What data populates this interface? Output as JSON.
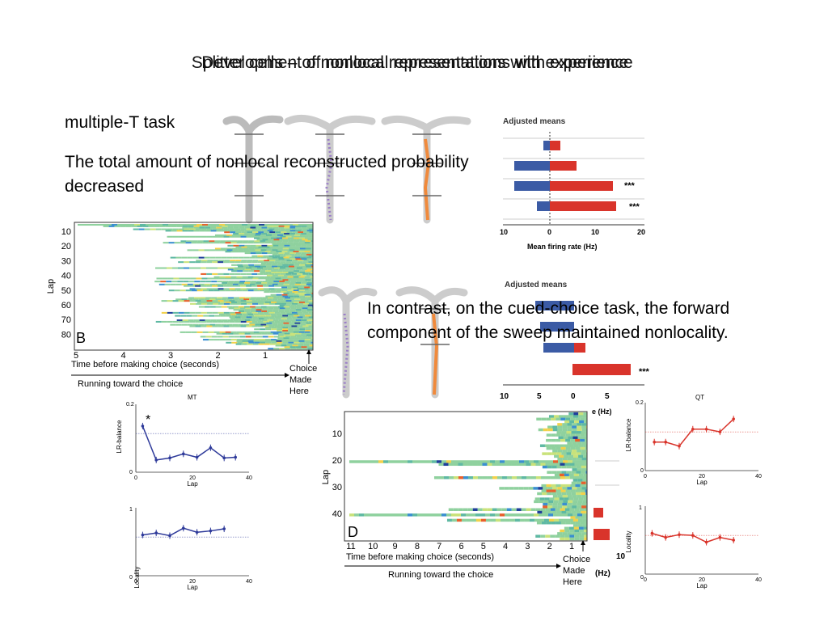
{
  "slide": {
    "title_a": "Splitter cells – of nonlocal representations with experience",
    "title_b": "Development of nonlocal representations with experience",
    "subtitle": "multiple-T task",
    "text1": "The total amount of nonlocal reconstructed probability decreased",
    "text2": "In contrast, on the cued-choice task, the forward component of the sweep maintained nonlocality."
  },
  "figure_B": {
    "panel_letter": "B",
    "ylabel": "Lap",
    "y_ticks": [
      "10",
      "20",
      "30",
      "40",
      "50",
      "60",
      "70",
      "80"
    ],
    "x_ticks": [
      "5",
      "4",
      "3",
      "2",
      "1"
    ],
    "xlabel": "Time before making choice (seconds)",
    "arrow_label": "Running toward the choice",
    "choice_label": [
      "Choice",
      "Made",
      "Here"
    ]
  },
  "figure_D": {
    "panel_letter": "D",
    "ylabel": "Lap",
    "y_ticks": [
      "10",
      "20",
      "30",
      "40"
    ],
    "x_ticks": [
      "11",
      "10",
      "9",
      "8",
      "7",
      "6",
      "5",
      "4",
      "3",
      "2",
      "1"
    ],
    "xlabel": "Time before making choice (seconds)",
    "arrow_label": "Running toward the choice",
    "choice_label": [
      "Choice",
      "Made",
      "Here"
    ]
  },
  "adjusted_means_top": {
    "title": "Adjusted means",
    "xlabel": "Mean firing rate (Hz)",
    "x_ticks": [
      "10",
      "0",
      "10",
      "20"
    ],
    "stars": [
      "***",
      "***"
    ],
    "colors": {
      "left": "#3b5ba5",
      "right": "#d9342b"
    }
  },
  "adjusted_means_bottom": {
    "title": "Adjusted means",
    "x_ticks": [
      "10",
      "5",
      "0",
      "5"
    ],
    "stars": [
      "***"
    ],
    "partial_label": "e (Hz)",
    "partial_tick": "10",
    "partial_hz": "(Hz)"
  },
  "mt_plots": {
    "title": "MT",
    "star": "*",
    "top_ylabel": "LR-balance",
    "top_y_ticks": [
      "0.2",
      "0"
    ],
    "bottom_ylabel": "Locality",
    "bottom_y_ticks": [
      "1",
      "0"
    ],
    "x_ticks": [
      "0",
      "20",
      "40"
    ],
    "xlabel": "Lap",
    "color": "#2e3a9a"
  },
  "qt_plots": {
    "title": "QT",
    "top_ylabel": "LR-balance",
    "top_y_ticks": [
      "0.2",
      "0"
    ],
    "bottom_ylabel": "Locality",
    "bottom_y_ticks": [
      "1",
      "0"
    ],
    "x_ticks": [
      "0",
      "20",
      "40"
    ],
    "xlabel": "Lap",
    "color": "#d9342b"
  }
}
